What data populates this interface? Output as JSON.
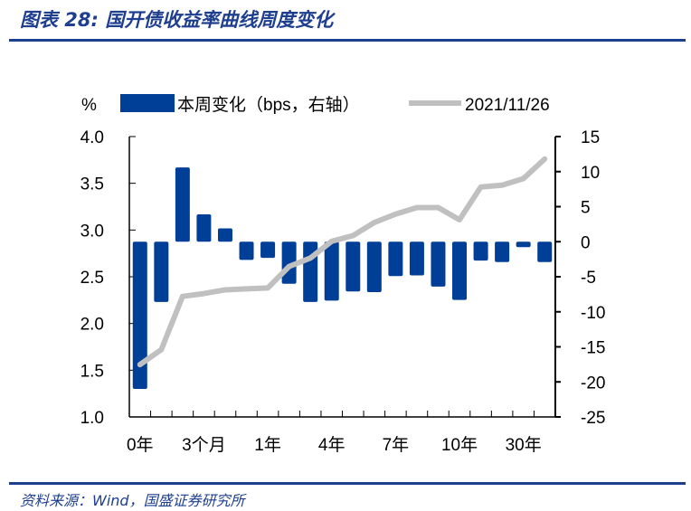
{
  "header": {
    "title": "图表 28:  国开债收益率曲线周度变化"
  },
  "footer": {
    "source": "资料来源：Wind，国盛证券研究所"
  },
  "chart_data": {
    "type": "bar+line",
    "left_unit": "%",
    "categories": [
      "0年",
      "",
      "",
      "3个月",
      "",
      "",
      "1年",
      "",
      "",
      "4年",
      "",
      "",
      "7年",
      "",
      "",
      "10年",
      "",
      "",
      "30年",
      ""
    ],
    "series": [
      {
        "name": "本周变化（bps，右轴）",
        "type": "bar",
        "axis": "right",
        "color": "#003f98",
        "values": [
          -21,
          -8.6,
          10.6,
          3.9,
          1.9,
          -2.6,
          -2.3,
          -6,
          -8.6,
          -8.4,
          -7.1,
          -7.2,
          -4.9,
          -4.8,
          -6.4,
          -8.3,
          -2.7,
          -2.9,
          -0.7,
          -2.9
        ]
      },
      {
        "name": "2021/11/26",
        "type": "line",
        "axis": "left",
        "color": "#c0c0c0",
        "values": [
          1.56,
          1.72,
          2.29,
          2.32,
          2.36,
          2.37,
          2.38,
          2.61,
          2.7,
          2.88,
          2.94,
          3.08,
          3.17,
          3.24,
          3.24,
          3.11,
          3.46,
          3.48,
          3.55,
          3.76
        ]
      }
    ],
    "ylim_left": [
      1.0,
      4.0
    ],
    "yticks_left": [
      "1.0",
      "1.5",
      "2.0",
      "2.5",
      "3.0",
      "3.5",
      "4.0"
    ],
    "ylim_right": [
      -25,
      15
    ],
    "yticks_right": [
      "-25",
      "-20",
      "-15",
      "-10",
      "-5",
      "0",
      "5",
      "10",
      "15"
    ],
    "legend": "top"
  }
}
